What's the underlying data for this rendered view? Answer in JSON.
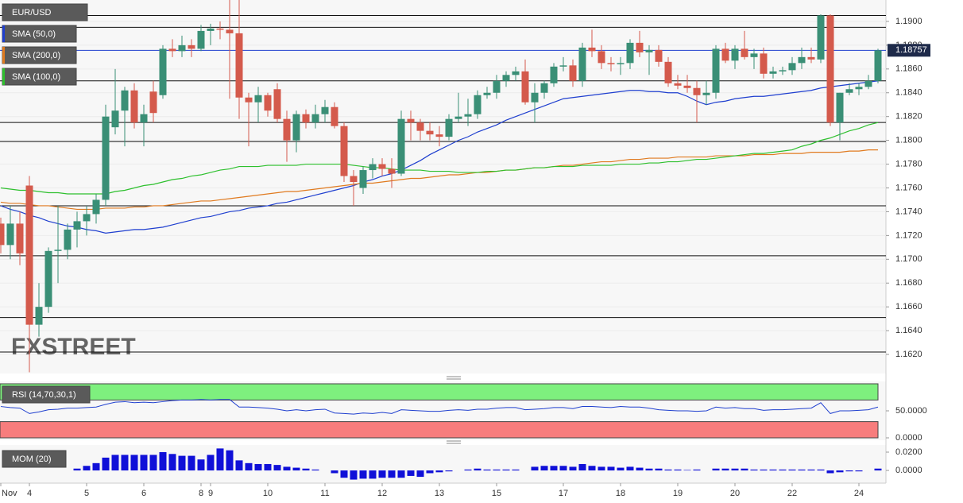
{
  "chart_data": [
    {
      "type": "candlestick",
      "title": "EUR/USD",
      "up_color": "#3a8f76",
      "down_color": "#d45a4c",
      "open": [
        1.173,
        1.1712,
        1.173,
        1.1762,
        1.1645,
        1.166,
        1.1707,
        1.1708,
        1.1725,
        1.1732,
        1.1738,
        1.175,
        1.1811,
        1.1825,
        1.1842,
        1.1815,
        1.1841,
        1.1838,
        1.1877,
        1.1875,
        1.188,
        1.1877,
        1.1892,
        1.1894,
        1.1893,
        1.189,
        1.1836,
        1.1832,
        1.1838,
        1.1843,
        1.1818,
        1.18,
        1.1822,
        1.1815,
        1.1822,
        1.1828,
        1.1812,
        1.177,
        1.176,
        1.1775,
        1.178,
        1.1776,
        1.1772,
        1.1818,
        1.1815,
        1.1808,
        1.1805,
        1.1803,
        1.1818,
        1.182,
        1.1822,
        1.1838,
        1.184,
        1.185,
        1.1855,
        1.1858,
        1.1832,
        1.184,
        1.1848,
        1.1862,
        1.1863,
        1.185,
        1.1878,
        1.1875,
        1.1865,
        1.1864,
        1.1865,
        1.1882,
        1.1874,
        1.1876,
        1.1866,
        1.1848,
        1.1846,
        1.1844,
        1.1838,
        1.184,
        1.1877,
        1.1867,
        1.1877,
        1.187,
        1.1873,
        1.1856,
        1.1858,
        1.1859,
        1.1865,
        1.187,
        1.1868,
        1.1905,
        1.1815,
        1.184,
        1.1843,
        1.1845,
        1.185
      ],
      "high": [
        1.1735,
        1.1745,
        1.174,
        1.177,
        1.168,
        1.171,
        1.1745,
        1.173,
        1.174,
        1.1745,
        1.1755,
        1.183,
        1.186,
        1.1845,
        1.1848,
        1.183,
        1.185,
        1.188,
        1.1885,
        1.1888,
        1.1885,
        1.1897,
        1.1898,
        1.19,
        1.1918,
        1.1918,
        1.184,
        1.1845,
        1.184,
        1.1848,
        1.1825,
        1.1825,
        1.1826,
        1.183,
        1.1834,
        1.1832,
        1.1815,
        1.1775,
        1.1778,
        1.1785,
        1.1785,
        1.1785,
        1.1825,
        1.1825,
        1.1818,
        1.1815,
        1.1812,
        1.1822,
        1.184,
        1.1835,
        1.1842,
        1.1845,
        1.1855,
        1.1858,
        1.1862,
        1.1868,
        1.1848,
        1.185,
        1.1865,
        1.187,
        1.1868,
        1.1882,
        1.1893,
        1.188,
        1.187,
        1.187,
        1.1885,
        1.1892,
        1.188,
        1.188,
        1.187,
        1.1855,
        1.1855,
        1.185,
        1.185,
        1.188,
        1.1882,
        1.188,
        1.1892,
        1.1877,
        1.1878,
        1.1862,
        1.1862,
        1.187,
        1.1878,
        1.1878,
        1.1906,
        1.1906,
        1.184,
        1.1848,
        1.1848,
        1.1855,
        1.1877
      ],
      "low": [
        1.1705,
        1.17,
        1.1695,
        1.1605,
        1.1635,
        1.1655,
        1.168,
        1.17,
        1.171,
        1.172,
        1.173,
        1.1745,
        1.1805,
        1.1795,
        1.181,
        1.1795,
        1.1815,
        1.1835,
        1.187,
        1.187,
        1.187,
        1.1875,
        1.188,
        1.1885,
        1.1835,
        1.1818,
        1.1795,
        1.1815,
        1.182,
        1.1815,
        1.1782,
        1.179,
        1.181,
        1.181,
        1.1815,
        1.181,
        1.1765,
        1.1745,
        1.1755,
        1.1768,
        1.177,
        1.176,
        1.177,
        1.18,
        1.18,
        1.18,
        1.1795,
        1.18,
        1.1815,
        1.1812,
        1.1818,
        1.1835,
        1.1835,
        1.1845,
        1.185,
        1.183,
        1.1815,
        1.1835,
        1.1845,
        1.1858,
        1.1845,
        1.1845,
        1.187,
        1.186,
        1.1858,
        1.1855,
        1.186,
        1.187,
        1.1855,
        1.1862,
        1.1845,
        1.1843,
        1.184,
        1.1815,
        1.183,
        1.1835,
        1.1865,
        1.186,
        1.1868,
        1.186,
        1.1852,
        1.1852,
        1.1855,
        1.1855,
        1.186,
        1.1865,
        1.1865,
        1.1812,
        1.18,
        1.1838,
        1.1838,
        1.1843,
        1.1848
      ],
      "close": [
        1.1712,
        1.173,
        1.1705,
        1.1645,
        1.166,
        1.1707,
        1.1708,
        1.1725,
        1.1732,
        1.1738,
        1.175,
        1.182,
        1.1825,
        1.1842,
        1.1815,
        1.1822,
        1.1823,
        1.1877,
        1.1875,
        1.188,
        1.1877,
        1.1892,
        1.1894,
        1.1893,
        1.189,
        1.1836,
        1.1832,
        1.1838,
        1.1825,
        1.1818,
        1.18,
        1.1822,
        1.1815,
        1.1822,
        1.1828,
        1.1812,
        1.177,
        1.1765,
        1.1775,
        1.178,
        1.1776,
        1.1772,
        1.1818,
        1.1815,
        1.1808,
        1.1805,
        1.1803,
        1.1818,
        1.182,
        1.1822,
        1.1838,
        1.184,
        1.185,
        1.1855,
        1.1858,
        1.1832,
        1.184,
        1.1848,
        1.1862,
        1.1863,
        1.185,
        1.1878,
        1.1875,
        1.1865,
        1.1864,
        1.1865,
        1.1882,
        1.1874,
        1.1876,
        1.1866,
        1.1848,
        1.1846,
        1.1844,
        1.1838,
        1.184,
        1.1877,
        1.1867,
        1.1877,
        1.187,
        1.1873,
        1.1856,
        1.1858,
        1.1859,
        1.1865,
        1.187,
        1.1868,
        1.1905,
        1.1815,
        1.184,
        1.1843,
        1.1845,
        1.185,
        1.18757
      ],
      "series": [
        {
          "name": "SMA (50,0)",
          "color": "#1f3fcf",
          "values": [
            1.1745,
            1.1742,
            1.174,
            1.1737,
            1.1735,
            1.1732,
            1.173,
            1.1728,
            1.1727,
            1.1725,
            1.1724,
            1.1722,
            1.1723,
            1.1724,
            1.1725,
            1.1725,
            1.1726,
            1.1727,
            1.1729,
            1.1731,
            1.1733,
            1.1735,
            1.1736,
            1.1738,
            1.174,
            1.1741,
            1.1743,
            1.1744,
            1.1745,
            1.1747,
            1.1748,
            1.175,
            1.1752,
            1.1754,
            1.1756,
            1.1758,
            1.176,
            1.1762,
            1.1765,
            1.1767,
            1.177,
            1.1772,
            1.1775,
            1.1779,
            1.1783,
            1.1788,
            1.1792,
            1.1796,
            1.18,
            1.1803,
            1.1807,
            1.181,
            1.1813,
            1.1817,
            1.182,
            1.1823,
            1.1826,
            1.1829,
            1.1832,
            1.1835,
            1.1836,
            1.1837,
            1.1838,
            1.1839,
            1.184,
            1.1841,
            1.1842,
            1.1842,
            1.1841,
            1.1841,
            1.184,
            1.184,
            1.1837,
            1.1833,
            1.183,
            1.1832,
            1.1833,
            1.1835,
            1.1836,
            1.1837,
            1.1837,
            1.1838,
            1.1839,
            1.184,
            1.1841,
            1.1842,
            1.1844,
            1.1845,
            1.1846,
            1.1847,
            1.1848,
            1.1849,
            1.185
          ]
        },
        {
          "name": "SMA (200,0)",
          "color": "#e07a1f",
          "values": [
            1.1748,
            1.1747,
            1.1747,
            1.1746,
            1.1745,
            1.1745,
            1.1744,
            1.1743,
            1.1742,
            1.1742,
            1.1742,
            1.1743,
            1.1743,
            1.1743,
            1.1744,
            1.1744,
            1.1745,
            1.1745,
            1.1746,
            1.1747,
            1.1748,
            1.1749,
            1.1749,
            1.175,
            1.1751,
            1.1752,
            1.1753,
            1.1754,
            1.1755,
            1.1756,
            1.1757,
            1.1757,
            1.1758,
            1.1759,
            1.176,
            1.1761,
            1.1762,
            1.1763,
            1.1764,
            1.1764,
            1.1765,
            1.1766,
            1.1767,
            1.1768,
            1.1768,
            1.1769,
            1.177,
            1.1771,
            1.1771,
            1.1772,
            1.1773,
            1.1773,
            1.1774,
            1.1775,
            1.1775,
            1.1776,
            1.1777,
            1.1777,
            1.1778,
            1.1779,
            1.1779,
            1.178,
            1.1781,
            1.1782,
            1.1782,
            1.1783,
            1.1784,
            1.1784,
            1.1785,
            1.1785,
            1.1785,
            1.1786,
            1.1786,
            1.1786,
            1.1786,
            1.1787,
            1.1787,
            1.1787,
            1.1787,
            1.1788,
            1.1788,
            1.1788,
            1.1789,
            1.1789,
            1.1789,
            1.179,
            1.179,
            1.179,
            1.179,
            1.1791,
            1.1791,
            1.1792,
            1.1792
          ]
        },
        {
          "name": "SMA (100,0)",
          "color": "#2ec02e",
          "values": [
            1.176,
            1.1759,
            1.1758,
            1.1758,
            1.1757,
            1.1756,
            1.1756,
            1.1755,
            1.1755,
            1.1755,
            1.1755,
            1.1755,
            1.1757,
            1.1758,
            1.176,
            1.1762,
            1.1763,
            1.1765,
            1.1767,
            1.1768,
            1.177,
            1.1771,
            1.1773,
            1.1775,
            1.1776,
            1.1778,
            1.1778,
            1.1778,
            1.1779,
            1.1779,
            1.1779,
            1.1779,
            1.178,
            1.178,
            1.178,
            1.178,
            1.178,
            1.1779,
            1.1778,
            1.1777,
            1.1777,
            1.1776,
            1.1775,
            1.1775,
            1.1775,
            1.1774,
            1.1774,
            1.1774,
            1.1773,
            1.1773,
            1.1773,
            1.1774,
            1.1774,
            1.1775,
            1.1775,
            1.1776,
            1.1777,
            1.1777,
            1.1778,
            1.1778,
            1.1778,
            1.1779,
            1.1779,
            1.1779,
            1.1779,
            1.178,
            1.178,
            1.178,
            1.1781,
            1.1781,
            1.1782,
            1.1782,
            1.1783,
            1.1784,
            1.1784,
            1.1785,
            1.1786,
            1.1787,
            1.1788,
            1.1789,
            1.1789,
            1.179,
            1.1791,
            1.1792,
            1.1795,
            1.1797,
            1.18,
            1.1802,
            1.1805,
            1.1808,
            1.181,
            1.1813,
            1.1815
          ]
        }
      ],
      "levels": [
        1.1905,
        1.1895,
        1.185,
        1.1815,
        1.1799,
        1.1745,
        1.1703,
        1.1651,
        1.1622
      ],
      "last_price": 1.18757,
      "last_price_color": "#1f3fcf",
      "ylim": [
        1.1604,
        1.1918
      ],
      "yticks": [
        {
          "value": 1.162,
          "label": "1.1620"
        },
        {
          "value": 1.164,
          "label": "1.1640"
        },
        {
          "value": 1.166,
          "label": "1.1660"
        },
        {
          "value": 1.168,
          "label": "1.1680"
        },
        {
          "value": 1.17,
          "label": "1.1700"
        },
        {
          "value": 1.172,
          "label": "1.1720"
        },
        {
          "value": 1.174,
          "label": "1.1740"
        },
        {
          "value": 1.176,
          "label": "1.1760"
        },
        {
          "value": 1.178,
          "label": "1.1780"
        },
        {
          "value": 1.18,
          "label": "1.1800"
        },
        {
          "value": 1.182,
          "label": "1.1820"
        },
        {
          "value": 1.184,
          "label": "1.1840"
        },
        {
          "value": 1.186,
          "label": "1.1860"
        },
        {
          "value": 1.188,
          "label": "1.1880"
        },
        {
          "value": 1.19,
          "label": "1.1900"
        }
      ],
      "grid": true,
      "watermark": "FXSTREET"
    },
    {
      "type": "line",
      "title": "RSI (14,70,30,1)",
      "overbought": 70,
      "oversold": 30,
      "overbought_color": "#7ef07e",
      "oversold_color": "#f77d7d",
      "series": [
        {
          "color": "#1f3fcf",
          "values": [
            58,
            56,
            55,
            45,
            48,
            52,
            53,
            55,
            55,
            56,
            57,
            62,
            66,
            67,
            65,
            66,
            65,
            67,
            69,
            70,
            70,
            71,
            70,
            71,
            71,
            57,
            57,
            56,
            55,
            53,
            50,
            52,
            50,
            52,
            53,
            46,
            45,
            44,
            46,
            45,
            47,
            45,
            52,
            51,
            50,
            49,
            49,
            51,
            52,
            51,
            53,
            53,
            55,
            56,
            56,
            52,
            53,
            54,
            56,
            56,
            54,
            58,
            58,
            57,
            56,
            58,
            57,
            57,
            55,
            52,
            51,
            50,
            50,
            49,
            50,
            57,
            55,
            56,
            54,
            54,
            51,
            52,
            52,
            53,
            54,
            55,
            65,
            45,
            50,
            50,
            51,
            52,
            57
          ]
        }
      ],
      "ylim": [
        0,
        100
      ],
      "yticks": [
        {
          "value": 50,
          "label": "50.0000"
        },
        {
          "value": 0,
          "label": "0.0000"
        }
      ]
    },
    {
      "type": "bar",
      "title": "MOM (20)",
      "color": "#1010d8",
      "values": [
        null,
        null,
        null,
        null,
        null,
        null,
        null,
        null,
        0.002,
        0.005,
        0.008,
        0.014,
        0.017,
        0.017,
        0.017,
        0.017,
        0.017,
        0.02,
        0.018,
        0.016,
        0.016,
        0.012,
        0.017,
        0.024,
        0.022,
        0.011,
        0.008,
        0.007,
        0.007,
        0.006,
        0.004,
        0.003,
        0.002,
        0.001,
        0.0,
        -0.003,
        -0.008,
        -0.01,
        -0.009,
        -0.009,
        -0.008,
        -0.008,
        -0.008,
        -0.006,
        -0.007,
        -0.003,
        -0.002,
        -0.001,
        0.0,
        0.001,
        0.002,
        0.001,
        0.001,
        0.001,
        0.001,
        0.0,
        0.004,
        0.005,
        0.005,
        0.005,
        0.004,
        0.007,
        0.005,
        0.004,
        0.004,
        0.003,
        0.004,
        0.003,
        0.002,
        0.002,
        0.001,
        0.001,
        0.0005,
        0.001,
        0.0,
        0.002,
        0.002,
        0.002,
        0.002,
        0.001,
        0.001,
        0.001,
        0.001,
        0.001,
        0.001,
        0.001,
        0.001,
        -0.003,
        -0.002,
        -0.001,
        -0.001,
        0.0,
        0.002
      ],
      "ylim": [
        -0.013,
        0.0252
      ],
      "yticks": [
        {
          "value": 0.02,
          "label": "0.0200"
        },
        {
          "value": 0,
          "label": "0.0000"
        }
      ],
      "categories": [
        "Nov",
        null,
        null,
        "4",
        null,
        null,
        null,
        null,
        null,
        "5",
        null,
        null,
        null,
        null,
        null,
        "6",
        null,
        null,
        null,
        null,
        null,
        "8",
        "9",
        null,
        null,
        null,
        null,
        null,
        "10",
        null,
        null,
        null,
        null,
        null,
        "11",
        null,
        null,
        null,
        null,
        null,
        "12",
        null,
        null,
        null,
        null,
        null,
        "13",
        null,
        null,
        null,
        null,
        null,
        "15",
        null,
        null,
        null,
        null,
        null,
        null,
        "17",
        null,
        null,
        null,
        null,
        null,
        "18",
        null,
        null,
        null,
        null,
        null,
        "19",
        null,
        null,
        null,
        null,
        null,
        "20",
        null,
        null,
        null,
        null,
        null,
        "22",
        null,
        null,
        null,
        null,
        null,
        null,
        "24",
        null,
        null
      ]
    }
  ]
}
